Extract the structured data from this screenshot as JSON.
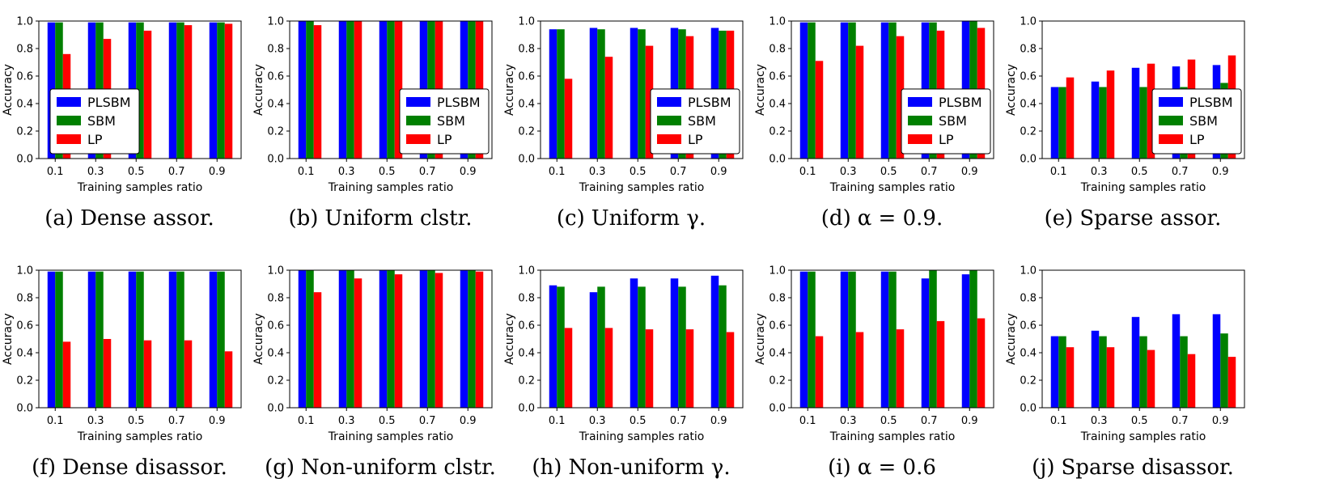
{
  "legend": [
    "PLSBM",
    "SBM",
    "LP"
  ],
  "colors": {
    "PLSBM": "#0000ff",
    "SBM": "#008000",
    "LP": "#ff0000",
    "error": "#000000"
  },
  "chart_data": [
    {
      "type": "bar",
      "caption_tag": "(a)",
      "caption_text": "Dense assor.",
      "categories": [
        "0.1",
        "0.3",
        "0.5",
        "0.7",
        "0.9"
      ],
      "xlabel": "Training samples ratio",
      "ylabel": "Accuracy",
      "ylim": [
        0,
        1.0
      ],
      "yticks": [
        "0.0",
        "0.2",
        "0.4",
        "0.6",
        "0.8",
        "1.0"
      ],
      "legend_position": "lower-left",
      "series": [
        {
          "name": "PLSBM",
          "values": [
            0.99,
            0.99,
            0.99,
            0.99,
            0.99
          ]
        },
        {
          "name": "SBM",
          "values": [
            0.99,
            0.99,
            0.99,
            0.99,
            0.99
          ]
        },
        {
          "name": "LP",
          "values": [
            0.76,
            0.87,
            0.93,
            0.97,
            0.98
          ]
        }
      ]
    },
    {
      "type": "bar",
      "caption_tag": "(b)",
      "caption_text": "Uniform clstr.",
      "categories": [
        "0.1",
        "0.3",
        "0.5",
        "0.7",
        "0.9"
      ],
      "xlabel": "Training samples ratio",
      "ylabel": "Accuracy",
      "ylim": [
        0,
        1.0
      ],
      "yticks": [
        "0.0",
        "0.2",
        "0.4",
        "0.6",
        "0.8",
        "1.0"
      ],
      "legend_position": "lower-right",
      "series": [
        {
          "name": "PLSBM",
          "values": [
            1.0,
            1.0,
            1.0,
            1.0,
            1.0
          ]
        },
        {
          "name": "SBM",
          "values": [
            1.0,
            1.0,
            1.0,
            1.0,
            1.0
          ]
        },
        {
          "name": "LP",
          "values": [
            0.97,
            1.0,
            1.0,
            1.0,
            1.0
          ]
        }
      ]
    },
    {
      "type": "bar",
      "caption_tag": "(c)",
      "caption_text": "Uniform γ.",
      "categories": [
        "0.1",
        "0.3",
        "0.5",
        "0.7",
        "0.9"
      ],
      "xlabel": "Training samples ratio",
      "ylabel": "Accuracy",
      "ylim": [
        0,
        1.0
      ],
      "yticks": [
        "0.0",
        "0.2",
        "0.4",
        "0.6",
        "0.8",
        "1.0"
      ],
      "legend_position": "lower-right",
      "series": [
        {
          "name": "PLSBM",
          "values": [
            0.94,
            0.95,
            0.95,
            0.95,
            0.95
          ]
        },
        {
          "name": "SBM",
          "values": [
            0.94,
            0.94,
            0.94,
            0.94,
            0.93
          ]
        },
        {
          "name": "LP",
          "values": [
            0.58,
            0.74,
            0.82,
            0.89,
            0.93
          ]
        }
      ]
    },
    {
      "type": "bar",
      "caption_tag": "(d)",
      "caption_text": "α = 0.9.",
      "categories": [
        "0.1",
        "0.3",
        "0.5",
        "0.7",
        "0.9"
      ],
      "xlabel": "Training samples ratio",
      "ylabel": "Accuracy",
      "ylim": [
        0,
        1.0
      ],
      "yticks": [
        "0.0",
        "0.2",
        "0.4",
        "0.6",
        "0.8",
        "1.0"
      ],
      "legend_position": "lower-right",
      "series": [
        {
          "name": "PLSBM",
          "values": [
            0.99,
            0.99,
            0.99,
            0.99,
            1.0
          ]
        },
        {
          "name": "SBM",
          "values": [
            0.99,
            0.99,
            0.99,
            0.99,
            1.0
          ]
        },
        {
          "name": "LP",
          "values": [
            0.71,
            0.82,
            0.89,
            0.93,
            0.95
          ]
        }
      ]
    },
    {
      "type": "bar",
      "caption_tag": "(e)",
      "caption_text": "Sparse assor.",
      "categories": [
        "0.1",
        "0.3",
        "0.5",
        "0.7",
        "0.9"
      ],
      "xlabel": "Training samples ratio",
      "ylabel": "Accuracy",
      "ylim": [
        0,
        1.0
      ],
      "yticks": [
        "0.0",
        "0.2",
        "0.4",
        "0.6",
        "0.8",
        "1.0"
      ],
      "legend_position": "lower-right",
      "series": [
        {
          "name": "PLSBM",
          "values": [
            0.52,
            0.56,
            0.66,
            0.67,
            0.68
          ]
        },
        {
          "name": "SBM",
          "values": [
            0.52,
            0.52,
            0.52,
            0.52,
            0.55
          ]
        },
        {
          "name": "LP",
          "values": [
            0.59,
            0.64,
            0.69,
            0.72,
            0.75
          ]
        }
      ]
    },
    {
      "type": "bar",
      "caption_tag": "(f)",
      "caption_text": "Dense disassor.",
      "categories": [
        "0.1",
        "0.3",
        "0.5",
        "0.7",
        "0.9"
      ],
      "xlabel": "Training samples ratio",
      "ylabel": "Accuracy",
      "ylim": [
        0,
        1.0
      ],
      "yticks": [
        "0.0",
        "0.2",
        "0.4",
        "0.6",
        "0.8",
        "1.0"
      ],
      "legend_position": "none",
      "series": [
        {
          "name": "PLSBM",
          "values": [
            0.99,
            0.99,
            0.99,
            0.99,
            0.99
          ]
        },
        {
          "name": "SBM",
          "values": [
            0.99,
            0.99,
            0.99,
            0.99,
            0.99
          ]
        },
        {
          "name": "LP",
          "values": [
            0.48,
            0.5,
            0.49,
            0.49,
            0.41
          ]
        }
      ]
    },
    {
      "type": "bar",
      "caption_tag": "(g)",
      "caption_text": "Non-uniform clstr.",
      "categories": [
        "0.1",
        "0.3",
        "0.5",
        "0.7",
        "0.9"
      ],
      "xlabel": "Training samples ratio",
      "ylabel": "Accuracy",
      "ylim": [
        0,
        1.0
      ],
      "yticks": [
        "0.0",
        "0.2",
        "0.4",
        "0.6",
        "0.8",
        "1.0"
      ],
      "legend_position": "none",
      "series": [
        {
          "name": "PLSBM",
          "values": [
            1.0,
            1.0,
            1.0,
            1.0,
            1.0
          ]
        },
        {
          "name": "SBM",
          "values": [
            1.0,
            1.0,
            1.0,
            1.0,
            1.0
          ]
        },
        {
          "name": "LP",
          "values": [
            0.84,
            0.94,
            0.97,
            0.98,
            0.99
          ]
        }
      ]
    },
    {
      "type": "bar",
      "caption_tag": "(h)",
      "caption_text": "Non-uniform γ.",
      "categories": [
        "0.1",
        "0.3",
        "0.5",
        "0.7",
        "0.9"
      ],
      "xlabel": "Training samples ratio",
      "ylabel": "Accuracy",
      "ylim": [
        0,
        1.0
      ],
      "yticks": [
        "0.0",
        "0.2",
        "0.4",
        "0.6",
        "0.8",
        "1.0"
      ],
      "legend_position": "none",
      "series": [
        {
          "name": "PLSBM",
          "values": [
            0.89,
            0.84,
            0.94,
            0.94,
            0.96
          ]
        },
        {
          "name": "SBM",
          "values": [
            0.88,
            0.88,
            0.88,
            0.88,
            0.89
          ]
        },
        {
          "name": "LP",
          "values": [
            0.58,
            0.58,
            0.57,
            0.57,
            0.55
          ]
        }
      ]
    },
    {
      "type": "bar",
      "caption_tag": "(i)",
      "caption_text": "α = 0.6",
      "categories": [
        "0.1",
        "0.3",
        "0.5",
        "0.7",
        "0.9"
      ],
      "xlabel": "Training samples ratio",
      "ylabel": "Accuracy",
      "ylim": [
        0,
        1.0
      ],
      "yticks": [
        "0.0",
        "0.2",
        "0.4",
        "0.6",
        "0.8",
        "1.0"
      ],
      "legend_position": "none",
      "series": [
        {
          "name": "PLSBM",
          "values": [
            0.99,
            0.99,
            0.99,
            0.94,
            0.97
          ]
        },
        {
          "name": "SBM",
          "values": [
            0.99,
            0.99,
            0.99,
            1.0,
            1.0
          ]
        },
        {
          "name": "LP",
          "values": [
            0.52,
            0.55,
            0.57,
            0.63,
            0.65
          ]
        }
      ]
    },
    {
      "type": "bar",
      "caption_tag": "(j)",
      "caption_text": "Sparse disassor.",
      "categories": [
        "0.1",
        "0.3",
        "0.5",
        "0.7",
        "0.9"
      ],
      "xlabel": "Training samples ratio",
      "ylabel": "Accuracy",
      "ylim": [
        0,
        1.0
      ],
      "yticks": [
        "0.0",
        "0.2",
        "0.4",
        "0.6",
        "0.8",
        "1.0"
      ],
      "legend_position": "none",
      "series": [
        {
          "name": "PLSBM",
          "values": [
            0.52,
            0.56,
            0.66,
            0.68,
            0.68
          ]
        },
        {
          "name": "SBM",
          "values": [
            0.52,
            0.52,
            0.52,
            0.52,
            0.54
          ]
        },
        {
          "name": "LP",
          "values": [
            0.44,
            0.44,
            0.42,
            0.39,
            0.37
          ]
        }
      ]
    }
  ]
}
